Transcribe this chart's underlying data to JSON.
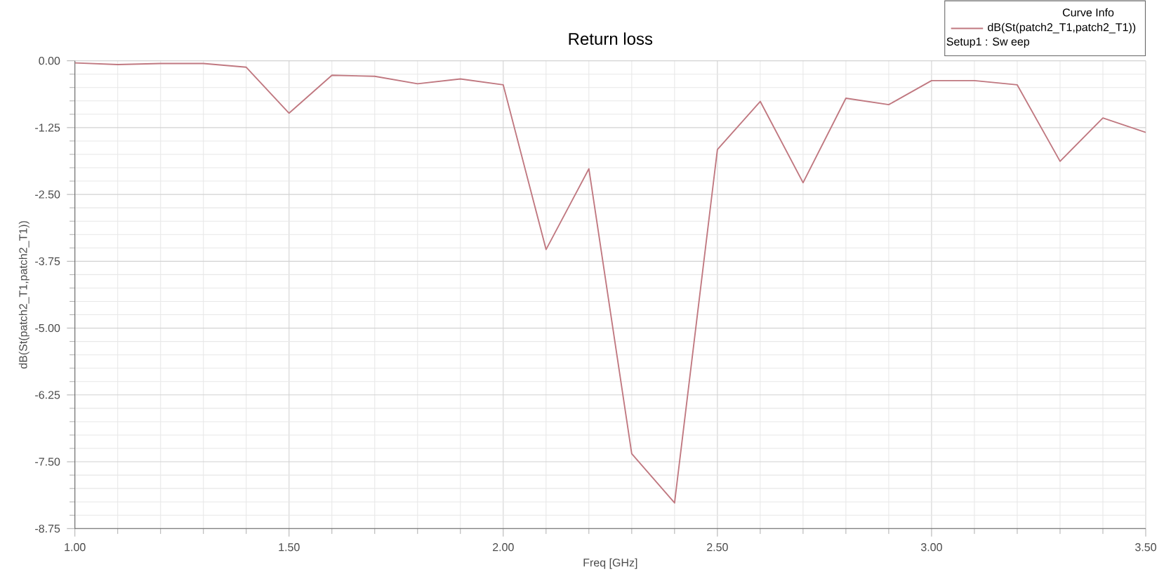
{
  "chart_data": {
    "type": "line",
    "title": "Return loss",
    "xlabel": "Freq [GHz]",
    "ylabel": "dB(St(patch2_T1,patch2_T1))",
    "legend_title": "Curve Info",
    "x": [
      1.0,
      1.1,
      1.2,
      1.3,
      1.4,
      1.5,
      1.6,
      1.7,
      1.8,
      1.9,
      2.0,
      2.1,
      2.2,
      2.3,
      2.4,
      2.5,
      2.6,
      2.7,
      2.8,
      2.9,
      3.0,
      3.1,
      3.2,
      3.3,
      3.4,
      3.5
    ],
    "series": [
      {
        "name": "dB(St(patch2_T1,patch2_T1))",
        "color": "#c07880",
        "values": [
          -0.04,
          -0.07,
          -0.05,
          -0.05,
          -0.12,
          -0.98,
          -0.27,
          -0.29,
          -0.43,
          -0.34,
          -0.45,
          -3.53,
          -2.02,
          -7.35,
          -8.27,
          -1.66,
          -0.76,
          -2.28,
          -0.7,
          -0.82,
          -0.37,
          -0.37,
          -0.45,
          -1.88,
          -1.07,
          -1.34
        ]
      }
    ],
    "annotations": [
      "Setup1 : Sw eep"
    ],
    "xlim": [
      1.0,
      3.5
    ],
    "ylim": [
      -8.75,
      0
    ],
    "xticks": [
      {
        "value": 1.0,
        "label": "1.00"
      },
      {
        "value": 1.5,
        "label": "1.50"
      },
      {
        "value": 2.0,
        "label": "2.00"
      },
      {
        "value": 2.5,
        "label": "2.50"
      },
      {
        "value": 3.0,
        "label": "3.00"
      },
      {
        "value": 3.5,
        "label": "3.50"
      }
    ],
    "yticks": [
      {
        "value": 0,
        "label": "0.00"
      },
      -1.25,
      {
        "value": -2.5,
        "label": "-2.50"
      },
      {
        "value": -3.75,
        "label": "-3.75"
      },
      {
        "value": -5.0,
        "label": "-5.00"
      },
      -6.25,
      {
        "value": -7.5,
        "label": "-7.50"
      },
      -8.75
    ],
    "grid": true,
    "legend": "top right",
    "marker": "none",
    "line_style": "solid"
  }
}
